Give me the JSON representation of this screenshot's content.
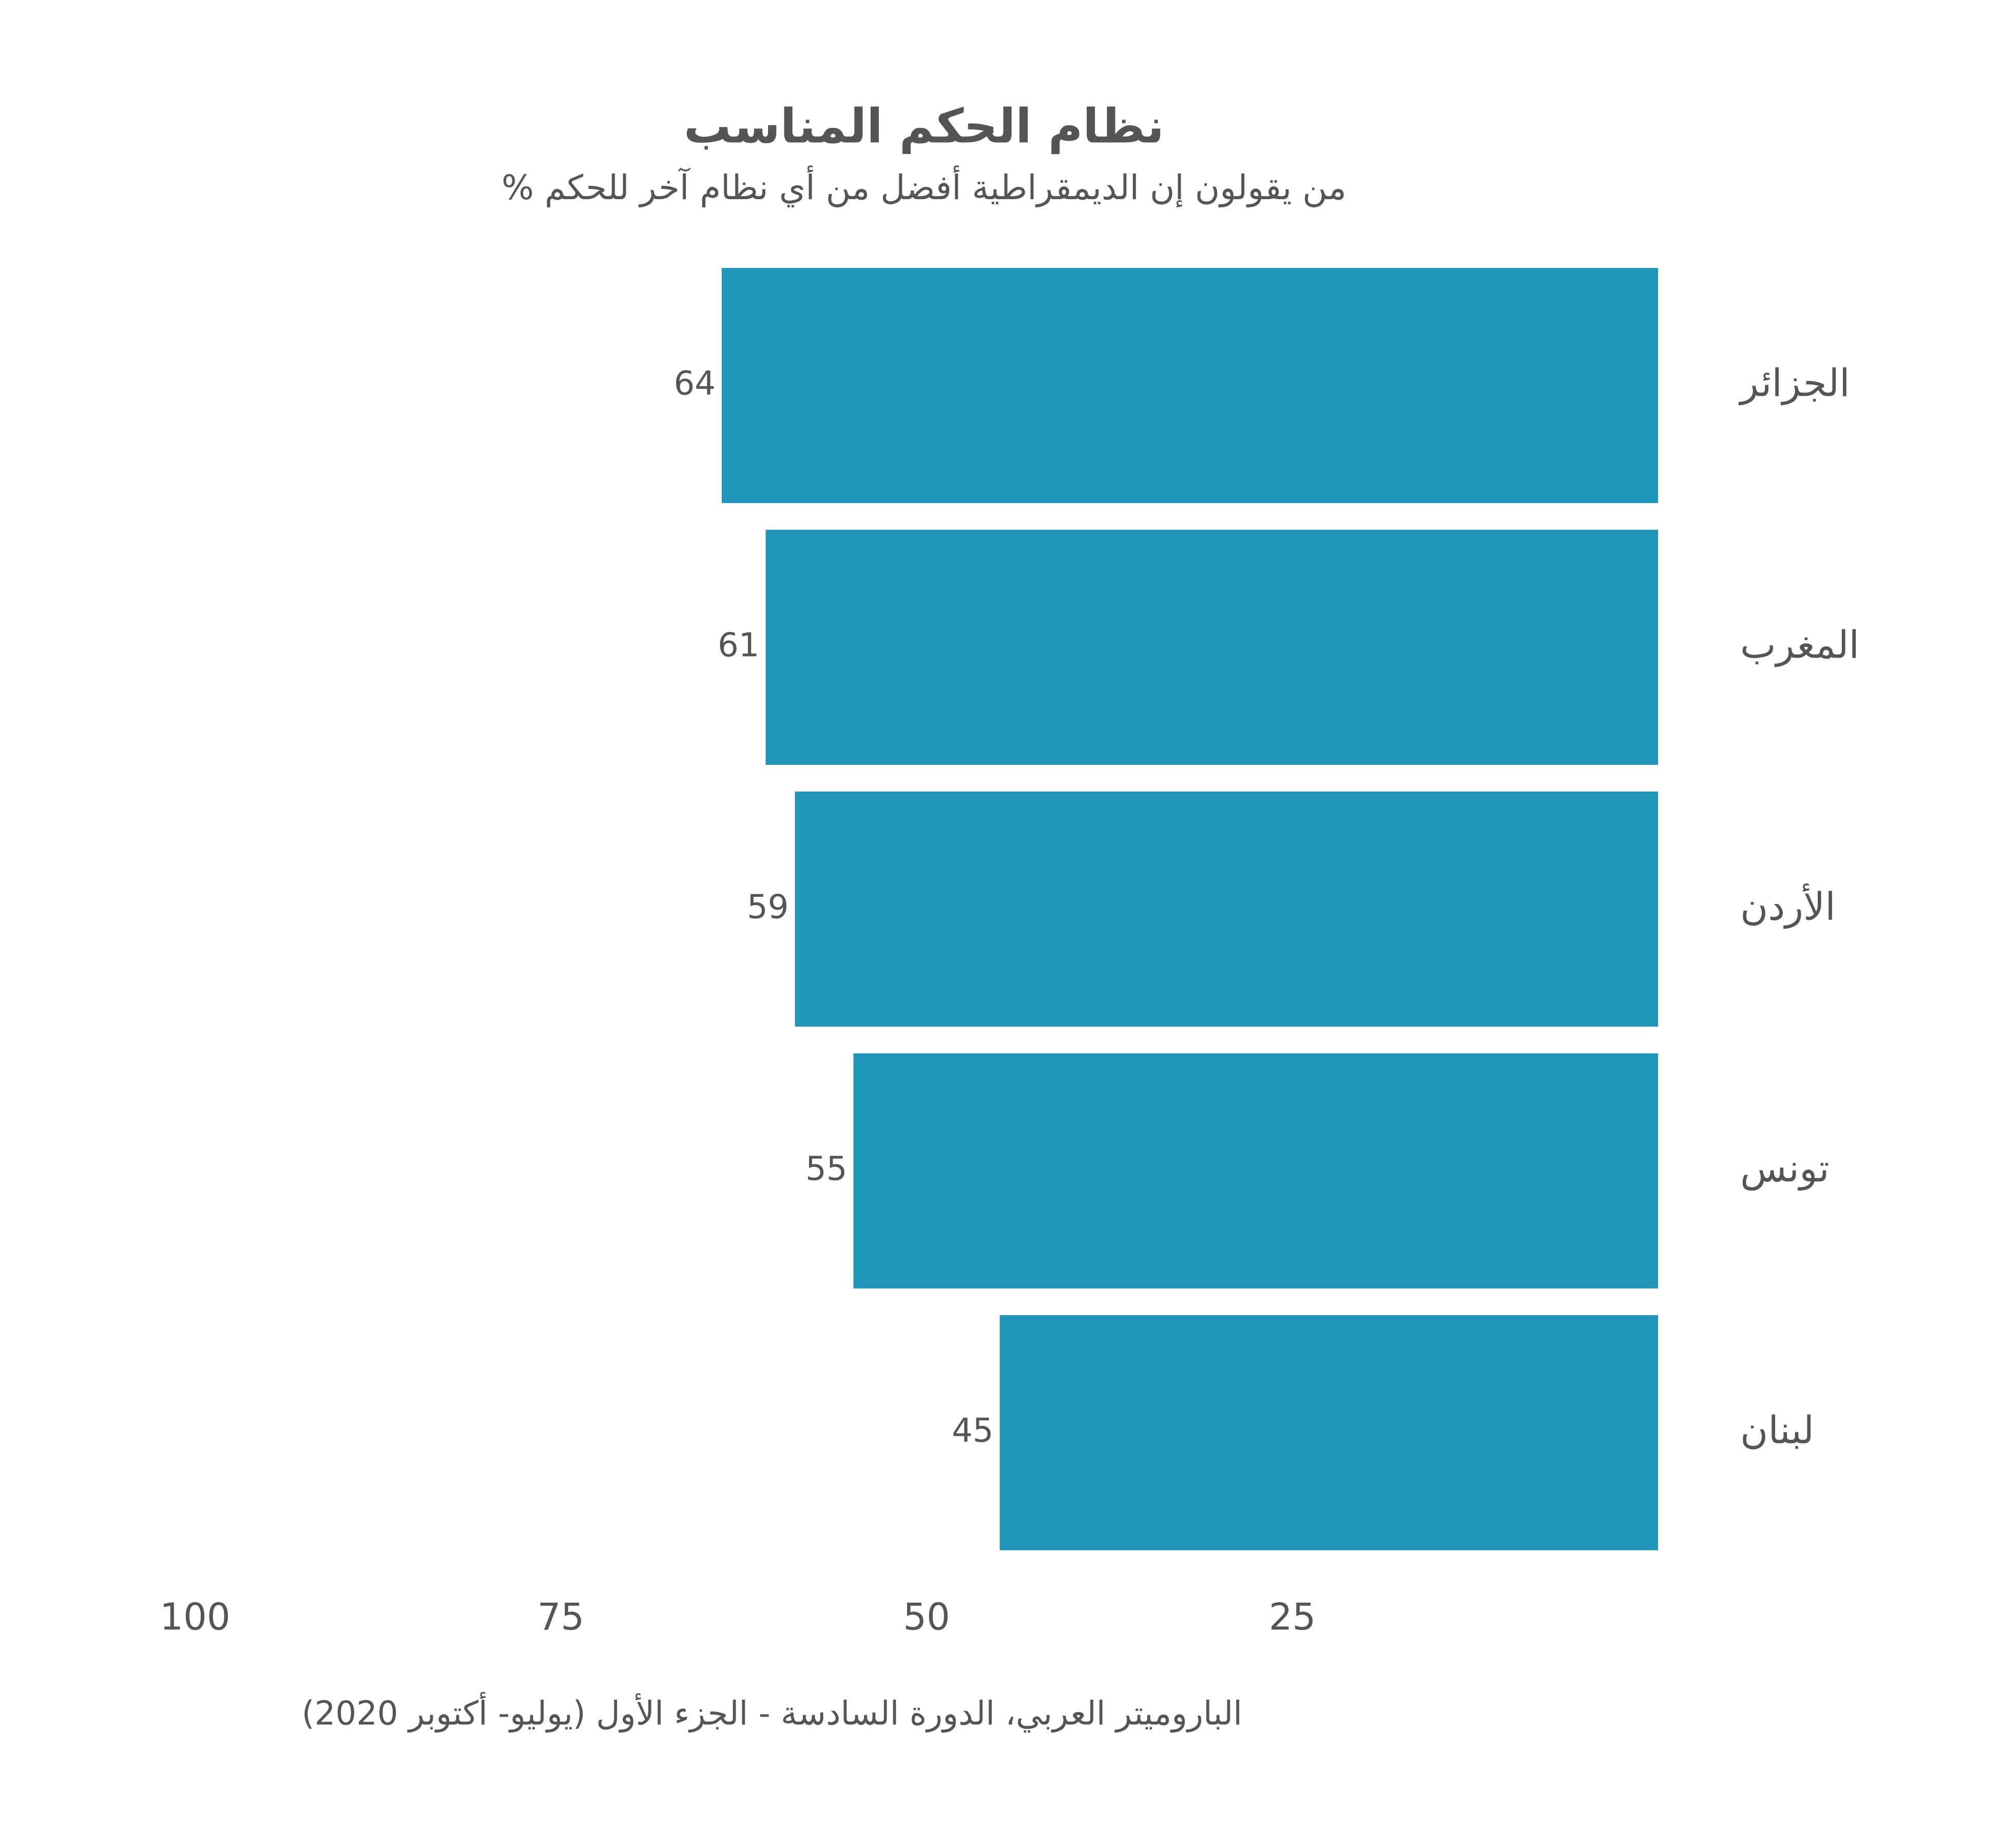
{
  "chart_data": {
    "type": "bar",
    "orientation": "horizontal",
    "x_reversed": true,
    "title": "نظام الحكم المناسب",
    "subtitle": "% من يقولون إن الديمقراطية أفضل من أي نظام آخر للحكم",
    "source": "الباروميتر العربي، الدورة السادسة - الجزء الأول (يوليو- أكتوبر 2020)",
    "categories": [
      "الجزائر",
      "المغرب",
      "الأردن",
      "تونس",
      "لبنان"
    ],
    "values": [
      64,
      61,
      59,
      55,
      45
    ],
    "color": "#2196bb",
    "xlim": [
      0,
      100
    ],
    "xticks": [
      25,
      50,
      75,
      100
    ],
    "grid": false
  }
}
